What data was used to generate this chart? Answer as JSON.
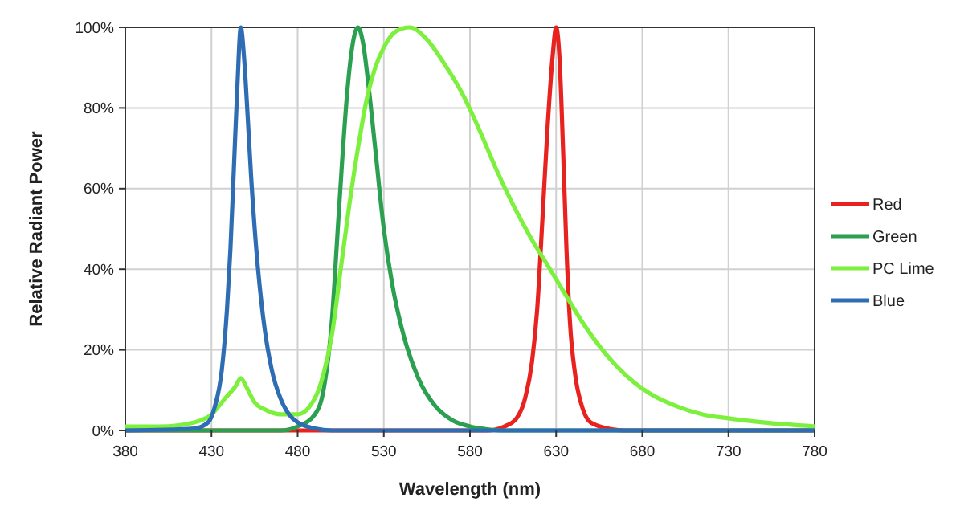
{
  "chart_data": {
    "type": "line",
    "xlabel": "Wavelength (nm)",
    "ylabel": "Relative Radiant Power",
    "xlim": [
      380,
      780
    ],
    "xticks": [
      380,
      430,
      480,
      530,
      580,
      630,
      680,
      730,
      780
    ],
    "ylim": [
      0,
      100
    ],
    "yticks": [
      {
        "value": 0,
        "label": "0%"
      },
      {
        "value": 20,
        "label": "20%"
      },
      {
        "value": 40,
        "label": "40%"
      },
      {
        "value": 60,
        "label": "60%"
      },
      {
        "value": 80,
        "label": "80%"
      },
      {
        "value": 100,
        "label": "100%"
      }
    ],
    "grid": true,
    "legend": "right",
    "marker": "none",
    "line_style": "solid",
    "series": [
      {
        "name": "Red",
        "color": "#e8231f",
        "x": [
          380,
          590,
          600,
          607,
          612,
          616,
          619,
          622,
          625,
          628,
          630,
          632,
          634,
          636,
          638,
          641,
          645,
          650,
          660,
          670,
          780
        ],
        "values": [
          0,
          0,
          1,
          3,
          8,
          17,
          30,
          52,
          75,
          93,
          100,
          92,
          70,
          45,
          27,
          14,
          6,
          2,
          0.5,
          0,
          0
        ]
      },
      {
        "name": "Green",
        "color": "#2aa050",
        "x": [
          380,
          470,
          480,
          490,
          495,
          500,
          503,
          506,
          509,
          512,
          515,
          518,
          521,
          525,
          530,
          535,
          540,
          550,
          560,
          570,
          580,
          590,
          600,
          780
        ],
        "values": [
          0,
          0,
          1,
          4,
          10,
          28,
          48,
          68,
          85,
          96,
          100,
          96,
          86,
          70,
          50,
          36,
          26,
          13,
          6,
          2.5,
          1,
          0.3,
          0,
          0
        ]
      },
      {
        "name": "PC Lime",
        "color": "#7cf03c",
        "x": [
          380,
          400,
          420,
          430,
          438,
          444,
          447,
          450,
          455,
          462,
          470,
          480,
          490,
          495,
          500,
          505,
          510,
          515,
          520,
          525,
          530,
          537,
          545,
          555,
          565,
          575,
          585,
          595,
          605,
          615,
          625,
          635,
          645,
          655,
          665,
          675,
          685,
          700,
          715,
          730,
          750,
          780
        ],
        "values": [
          1,
          1,
          2,
          4,
          8,
          11,
          13,
          11,
          7,
          5,
          4,
          4,
          8,
          14,
          24,
          40,
          56,
          70,
          82,
          90,
          95,
          99,
          100,
          97,
          91,
          84,
          75,
          65,
          56,
          48,
          41,
          34,
          27,
          21,
          16,
          12,
          9,
          6,
          4,
          3,
          2,
          1
        ]
      },
      {
        "name": "Blue",
        "color": "#2e6db4",
        "x": [
          380,
          420,
          428,
          432,
          436,
          439,
          441,
          443,
          445,
          447,
          449,
          451,
          453,
          456,
          460,
          465,
          470,
          475,
          480,
          490,
          500,
          780
        ],
        "values": [
          0,
          0.5,
          2,
          6,
          15,
          30,
          45,
          65,
          85,
          100,
          92,
          78,
          63,
          45,
          28,
          15,
          8,
          4,
          2,
          0.5,
          0,
          0
        ]
      }
    ]
  }
}
